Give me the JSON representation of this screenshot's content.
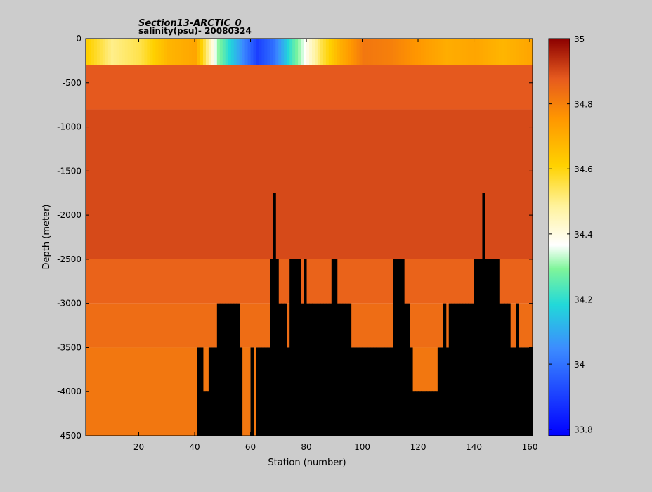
{
  "chart_data": {
    "type": "heatmap",
    "title": "Section13-ARCTIC_0",
    "subtitle": "salinity(psu)- 20080324",
    "xlabel": "Station (number)",
    "ylabel": "Depth (meter)",
    "xlim": [
      1,
      161
    ],
    "ylim": [
      -4500,
      0
    ],
    "x_ticks": [
      20,
      40,
      60,
      80,
      100,
      120,
      140,
      160
    ],
    "y_ticks": [
      0,
      -500,
      -1000,
      -1500,
      -2000,
      -2500,
      -3000,
      -3500,
      -4000,
      -4500
    ],
    "colorbar": {
      "ticks": [
        35,
        34.8,
        34.6,
        34.4,
        34.2,
        34,
        33.8
      ],
      "range": [
        33.78,
        35.0
      ],
      "colormap": "jet"
    },
    "surface_layer": {
      "depth_range": [
        0,
        -300
      ],
      "values_by_station": [
        [
          1,
          34.62
        ],
        [
          10,
          34.5
        ],
        [
          20,
          34.55
        ],
        [
          30,
          34.68
        ],
        [
          40,
          34.72
        ],
        [
          48,
          34.3
        ],
        [
          55,
          34.1
        ],
        [
          62,
          33.9
        ],
        [
          68,
          34.0
        ],
        [
          75,
          34.25
        ],
        [
          85,
          34.55
        ],
        [
          92,
          34.7
        ],
        [
          100,
          34.82
        ],
        [
          110,
          34.8
        ],
        [
          120,
          34.75
        ],
        [
          130,
          34.7
        ],
        [
          140,
          34.72
        ],
        [
          150,
          34.68
        ],
        [
          160,
          34.72
        ]
      ]
    },
    "bands": [
      {
        "depth_top": -300,
        "depth_bottom": -800,
        "salinity": 34.88
      },
      {
        "depth_top": -800,
        "depth_bottom": -2500,
        "salinity": 34.9
      },
      {
        "depth_top": -2500,
        "depth_bottom": -3000,
        "salinity": 34.86
      },
      {
        "depth_top": -3000,
        "depth_bottom": -3500,
        "salinity": 34.84
      },
      {
        "depth_top": -3500,
        "depth_bottom": -4500,
        "salinity": 34.82
      }
    ],
    "bottom_depth_by_station": [
      [
        1,
        -4500
      ],
      [
        40,
        -4500
      ],
      [
        41,
        -3500
      ],
      [
        43,
        -4000
      ],
      [
        45,
        -3500
      ],
      [
        48,
        -3000
      ],
      [
        56,
        -3500
      ],
      [
        57,
        -4500
      ],
      [
        60,
        -3500
      ],
      [
        61,
        -4500
      ],
      [
        62,
        -3500
      ],
      [
        67,
        -2500
      ],
      [
        68,
        -1750
      ],
      [
        69,
        -2500
      ],
      [
        70,
        -3000
      ],
      [
        73,
        -3500
      ],
      [
        74,
        -2500
      ],
      [
        78,
        -3000
      ],
      [
        79,
        -2500
      ],
      [
        80,
        -3000
      ],
      [
        89,
        -2500
      ],
      [
        91,
        -3000
      ],
      [
        96,
        -3500
      ],
      [
        111,
        -2500
      ],
      [
        115,
        -3000
      ],
      [
        117,
        -3500
      ],
      [
        118,
        -4000
      ],
      [
        127,
        -3500
      ],
      [
        129,
        -3000
      ],
      [
        130,
        -3500
      ],
      [
        131,
        -3000
      ],
      [
        140,
        -2500
      ],
      [
        143,
        -1750
      ],
      [
        144,
        -2500
      ],
      [
        149,
        -3000
      ],
      [
        153,
        -3500
      ],
      [
        155,
        -3000
      ],
      [
        156,
        -3500
      ],
      [
        161,
        -3500
      ]
    ],
    "colors": {
      "background": "#cccccc",
      "axes": "#000000",
      "plot_frame": "#ffffff",
      "topography": "#000000"
    }
  }
}
